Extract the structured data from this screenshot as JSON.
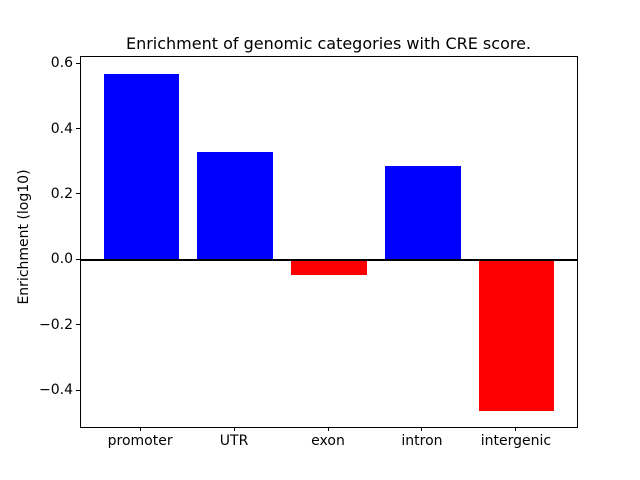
{
  "figure": {
    "background": "#ffffff"
  },
  "chart_data": {
    "type": "bar",
    "title": "Enrichment of genomic categories with CRE score.",
    "xlabel": "",
    "ylabel": "Enrichment (log10)",
    "categories": [
      "promoter",
      "UTR",
      "exon",
      "intron",
      "intergenic"
    ],
    "values": [
      0.57,
      0.33,
      -0.045,
      0.29,
      -0.46
    ],
    "bar_colors": [
      "#0000ff",
      "#0000ff",
      "#ff0000",
      "#0000ff",
      "#ff0000"
    ],
    "positive_color": "#0000ff",
    "negative_color": "#ff0000",
    "bar_width": 0.8,
    "xlim": [
      -0.64,
      4.64
    ],
    "ylim": [
      -0.51,
      0.622
    ],
    "yticks": {
      "values": [
        0.6,
        0.4,
        0.2,
        0.0,
        -0.2,
        -0.4
      ],
      "labels": [
        "0.6",
        "0.4",
        "0.2",
        "0.0",
        "−0.2",
        "−0.4"
      ]
    },
    "grid": false,
    "legend": null,
    "zero_line": true
  }
}
